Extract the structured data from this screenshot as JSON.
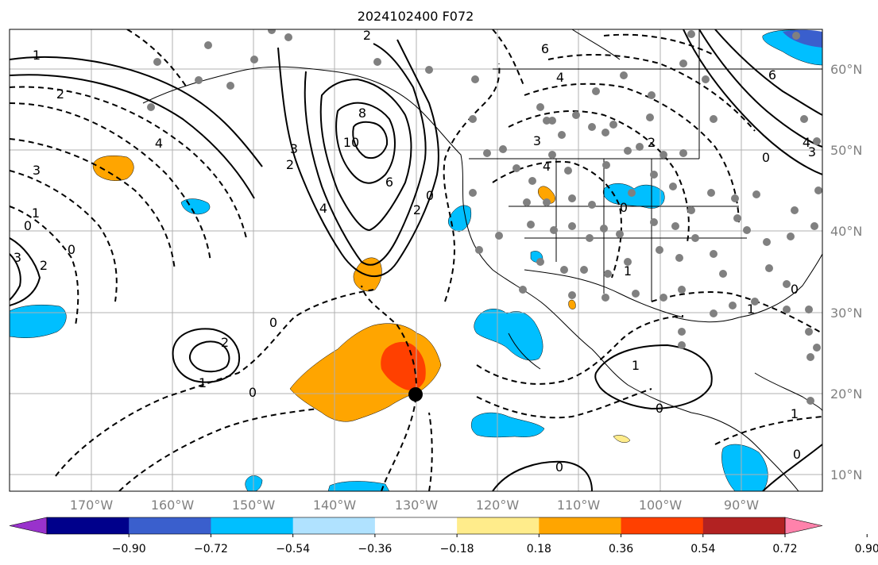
{
  "figure": {
    "title": "2024102400 F072",
    "latitude_labels": [
      "60°N",
      "50°N",
      "40°N",
      "30°N",
      "20°N",
      "10°N"
    ],
    "longitude_labels": [
      "170°W",
      "160°W",
      "150°W",
      "140°W",
      "130°W",
      "120°W",
      "110°W",
      "100°W",
      "90°W"
    ]
  },
  "colorbar": {
    "labels": [
      "−0.90",
      "−0.72",
      "−0.54",
      "−0.36",
      "−0.18",
      "0.18",
      "0.36",
      "0.54",
      "0.72",
      "0.90"
    ],
    "colors": [
      "#9932cc",
      "#00008b",
      "#3a5fcd",
      "#00bfff",
      "#b0e2ff",
      "#ffffff",
      "#ffec8b",
      "#ffa500",
      "#ff4000",
      "#b22222",
      "#ff82ab"
    ]
  },
  "map": {
    "contour_labels": [
      "1",
      "2",
      "3",
      "4",
      "0",
      "3",
      "2",
      "1",
      "0",
      "2",
      "1",
      "0",
      "8",
      "10",
      "6",
      "4",
      "3",
      "2",
      "2",
      "0",
      "4",
      "6",
      "2",
      "4",
      "3",
      "2",
      "1",
      "0",
      "6",
      "4",
      "3",
      "0",
      "1",
      "0",
      "1",
      "0",
      "0",
      "0",
      "1",
      "0"
    ],
    "fill_colors": {
      "orange": "#ffa500",
      "red_orange": "#ff4000",
      "light_blue": "#00bfff",
      "blue": "#3a5fcd",
      "yellow": "#ffec8b"
    },
    "marker_color": "#000000",
    "station_color": "#808080"
  }
}
